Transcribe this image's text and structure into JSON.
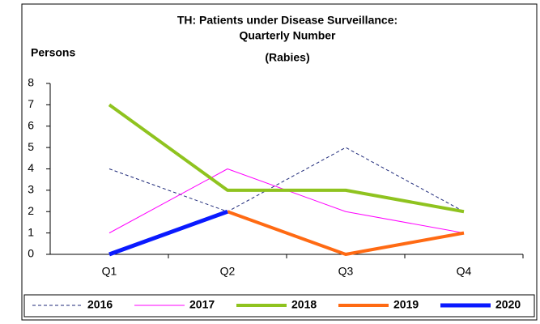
{
  "chart_data": {
    "type": "line",
    "title": [
      "TH:  Patients under Disease Surveillance:",
      "Quarterly Number",
      "(Rabies)"
    ],
    "y_label": "Persons",
    "categories": [
      "Q1",
      "Q2",
      "Q3",
      "Q4"
    ],
    "ylim": [
      0,
      8
    ],
    "yticks": [
      0,
      1,
      2,
      3,
      4,
      5,
      6,
      7,
      8
    ],
    "legend": "bottom",
    "series": [
      {
        "name": "2016",
        "color": "#1f2a7a",
        "width": 1,
        "dash": true,
        "values": [
          4,
          2,
          5,
          2
        ]
      },
      {
        "name": "2017",
        "color": "#ff00ff",
        "width": 1,
        "dash": false,
        "values": [
          1,
          4,
          2,
          1
        ]
      },
      {
        "name": "2018",
        "color": "#8fc31f",
        "width": 4,
        "dash": false,
        "values": [
          7,
          3,
          3,
          2
        ]
      },
      {
        "name": "2019",
        "color": "#ff6a13",
        "width": 4,
        "dash": false,
        "values": [
          null,
          2,
          0,
          1
        ]
      },
      {
        "name": "2020",
        "color": "#0a1aff",
        "width": 5,
        "dash": false,
        "values": [
          0,
          2,
          null,
          null
        ]
      }
    ]
  }
}
